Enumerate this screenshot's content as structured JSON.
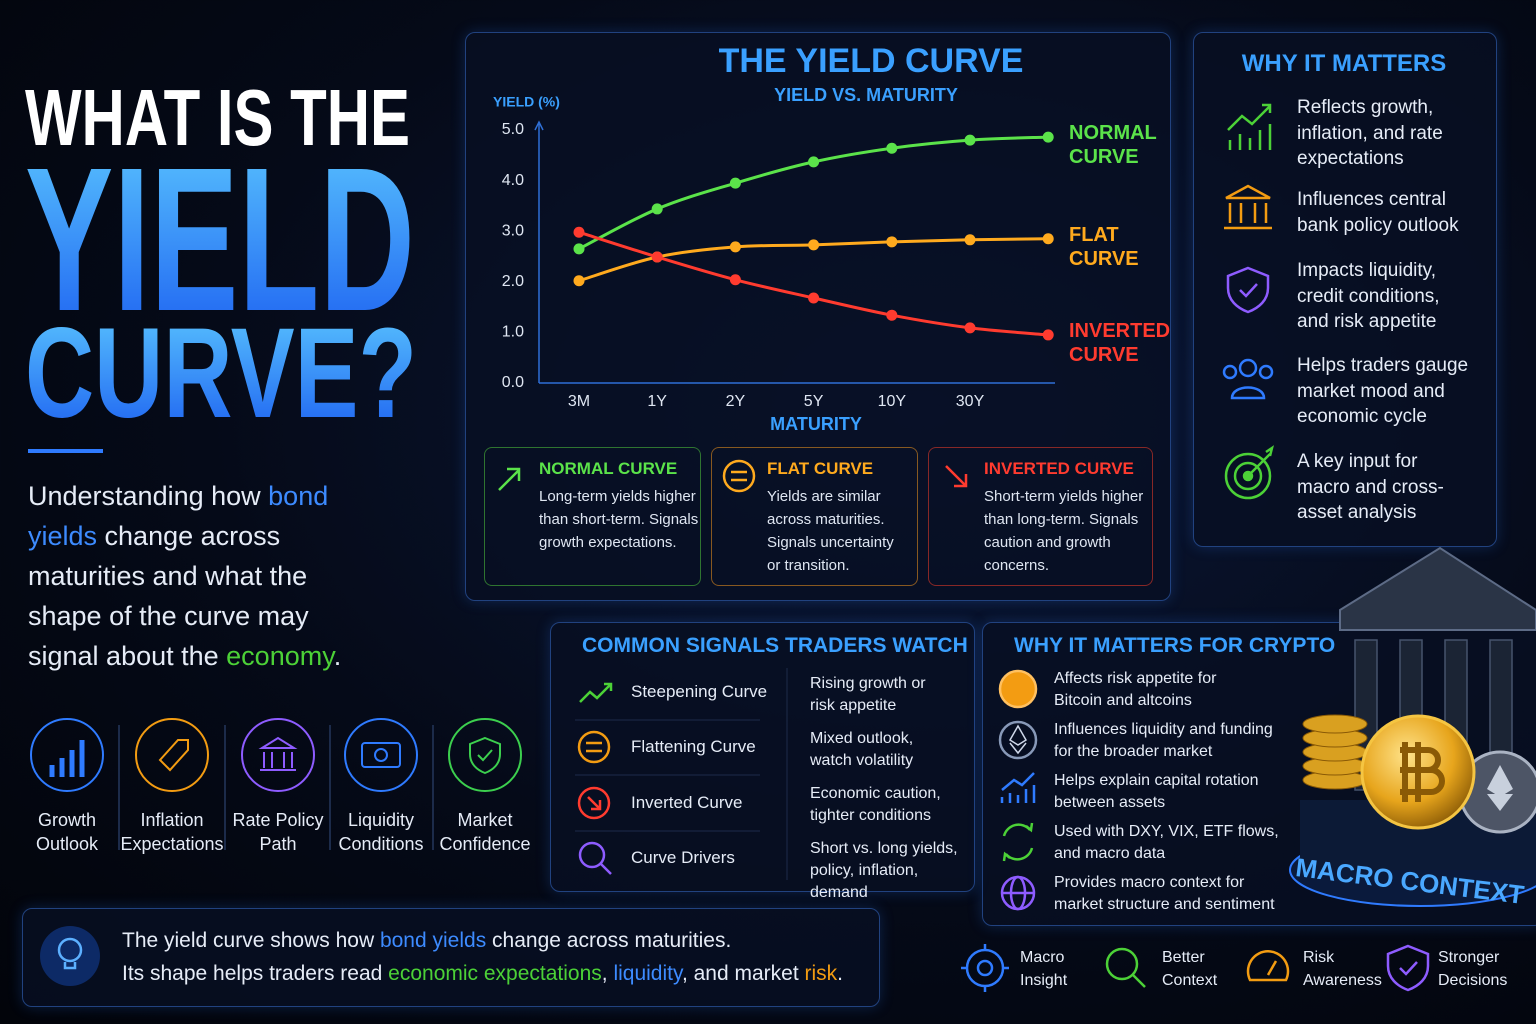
{
  "headline": {
    "line1": "WHAT IS THE",
    "line2": "YIELD",
    "line3": "CURVE?"
  },
  "intro": [
    "Understanding how ",
    "bond yields",
    " change across maturities and what the shape of the curve may signal about the ",
    "economy",
    "."
  ],
  "factors": [
    "Growth Outlook",
    "Inflation Expectations",
    "Rate Policy Path",
    "Liquidity Conditions",
    "Market Confidence"
  ],
  "chart_data": {
    "type": "line",
    "title": "THE YIELD CURVE",
    "subtitle": "YIELD VS. MATURITY",
    "ylabel": "YIELD (%)",
    "xlabel": "MATURITY",
    "categories": [
      "3M",
      "1Y",
      "2Y",
      "5Y",
      "10Y",
      "30Y",
      null
    ],
    "series": [
      {
        "name": "NORMAL CURVE",
        "color": "#5be34a",
        "values": [
          2.65,
          3.44,
          3.95,
          4.37,
          4.64,
          4.8,
          4.86
        ]
      },
      {
        "name": "FLAT CURVE",
        "color": "#ffaa1e",
        "values": [
          2.02,
          2.49,
          2.69,
          2.73,
          2.79,
          2.83,
          2.85
        ]
      },
      {
        "name": "INVERTED CURVE",
        "color": "#ff3b2f",
        "values": [
          2.98,
          2.49,
          2.04,
          1.68,
          1.34,
          1.09,
          0.95
        ]
      }
    ],
    "ylim": [
      0,
      5
    ],
    "yticks": [
      {
        "value": 0,
        "label": "0.0"
      },
      {
        "value": 1,
        "label": "1.0"
      },
      {
        "value": 2,
        "label": "2.0"
      },
      {
        "value": 3,
        "label": "3.0"
      },
      {
        "value": 4,
        "label": "4.0"
      },
      {
        "value": 5,
        "label": "5.0"
      }
    ],
    "grid": false
  },
  "curve_cards": [
    {
      "title": "NORMAL CURVE",
      "text": "Long-term yields higher than short-term. Signals growth expectations."
    },
    {
      "title": "FLAT CURVE",
      "text": "Yields are similar across maturities. Signals uncertainty or transition."
    },
    {
      "title": "INVERTED CURVE",
      "text": "Short-term yields higher than long-term. Signals caution and growth concerns."
    }
  ],
  "why_it_matters": {
    "title": "WHY IT MATTERS",
    "items": [
      "Reflects growth, inflation, and rate expectations",
      "Influences central bank policy outlook",
      "Impacts liquidity, credit conditions, and risk appetite",
      "Helps traders gauge market mood and economic cycle",
      "A key input for macro and cross-asset analysis"
    ]
  },
  "signals": {
    "title": "COMMON SIGNALS TRADERS WATCH",
    "rows": [
      {
        "name": "Steepening Curve",
        "meaning": "Rising growth or risk appetite"
      },
      {
        "name": "Flattening Curve",
        "meaning": "Mixed outlook, watch volatility"
      },
      {
        "name": "Inverted Curve",
        "meaning": "Economic caution, tighter conditions"
      },
      {
        "name": "Curve Drivers",
        "meaning": "Short vs. long yields, policy, inflation, demand"
      }
    ]
  },
  "crypto": {
    "title": "WHY IT MATTERS FOR CRYPTO",
    "items": [
      "Affects risk appetite for Bitcoin and altcoins",
      "Influences liquidity and funding for the broader market",
      "Helps explain capital rotation between assets",
      "Used with DXY, VIX, ETF flows, and macro data",
      "Provides macro context for market structure and sentiment"
    ]
  },
  "macro_badge": "MACRO CONTEXT",
  "summary": {
    "line1": [
      "The yield curve shows how ",
      "bond yields",
      " change across maturities."
    ],
    "line2": [
      "Its shape helps traders read ",
      "economic expectations",
      ", ",
      "liquidity",
      ", and market ",
      "risk",
      "."
    ]
  },
  "benefits": [
    "Macro Insight",
    "Better Context",
    "Risk Awareness",
    "Stronger Decisions"
  ]
}
